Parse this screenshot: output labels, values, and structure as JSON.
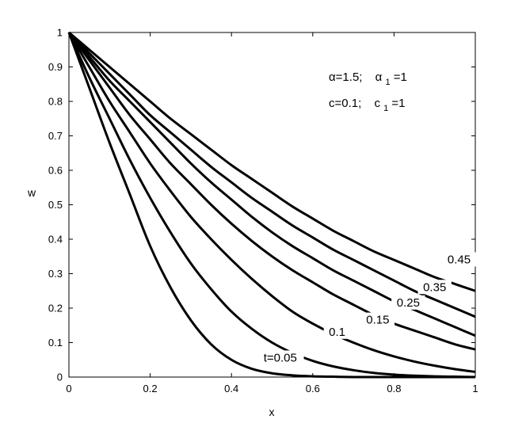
{
  "chart_data": {
    "type": "line",
    "title": "",
    "xlabel": "x",
    "ylabel": "w",
    "xlim": [
      0,
      1
    ],
    "ylim": [
      0,
      1
    ],
    "grid": false,
    "legend": "none",
    "line_color": "#000000",
    "xticks": [
      "0",
      "0.2",
      "0.4",
      "0.6",
      "0.8",
      "1"
    ],
    "yticks": [
      "0",
      "0.1",
      "0.2",
      "0.3",
      "0.4",
      "0.5",
      "0.6",
      "0.7",
      "0.8",
      "0.9",
      "1"
    ],
    "x": [
      0,
      0.05,
      0.1,
      0.15,
      0.2,
      0.25,
      0.3,
      0.35,
      0.4,
      0.45,
      0.5,
      0.55,
      0.6,
      0.65,
      0.7,
      0.75,
      0.8,
      0.85,
      0.9,
      0.95,
      1
    ],
    "series": [
      {
        "name": "t=0.05",
        "values": [
          1,
          0.84,
          0.68,
          0.53,
          0.38,
          0.26,
          0.165,
          0.095,
          0.05,
          0.024,
          0.011,
          0.005,
          0.002,
          0.001,
          0,
          0,
          0,
          0,
          0,
          0,
          0
        ]
      },
      {
        "name": "0.1",
        "values": [
          1,
          0.87,
          0.75,
          0.63,
          0.52,
          0.42,
          0.33,
          0.255,
          0.19,
          0.14,
          0.1,
          0.07,
          0.047,
          0.031,
          0.02,
          0.012,
          0.007,
          0.004,
          0.002,
          0.001,
          0
        ]
      },
      {
        "name": "0.15",
        "values": [
          1,
          0.9,
          0.8,
          0.71,
          0.62,
          0.54,
          0.465,
          0.4,
          0.34,
          0.285,
          0.235,
          0.19,
          0.155,
          0.125,
          0.1,
          0.078,
          0.06,
          0.045,
          0.033,
          0.023,
          0.015
        ]
      },
      {
        "name": "0.25",
        "values": [
          1,
          0.92,
          0.84,
          0.76,
          0.69,
          0.62,
          0.56,
          0.5,
          0.445,
          0.395,
          0.35,
          0.31,
          0.275,
          0.24,
          0.21,
          0.18,
          0.155,
          0.135,
          0.115,
          0.095,
          0.08
        ]
      },
      {
        "name": "0.35",
        "values": [
          1,
          0.93,
          0.86,
          0.8,
          0.74,
          0.68,
          0.62,
          0.565,
          0.515,
          0.465,
          0.42,
          0.38,
          0.345,
          0.31,
          0.28,
          0.25,
          0.22,
          0.195,
          0.17,
          0.145,
          0.12
        ]
      },
      {
        "name": "0.45",
        "values": [
          1,
          0.94,
          0.88,
          0.82,
          0.76,
          0.71,
          0.66,
          0.61,
          0.565,
          0.52,
          0.48,
          0.44,
          0.405,
          0.37,
          0.34,
          0.31,
          0.28,
          0.25,
          0.225,
          0.2,
          0.175
        ]
      },
      {
        "name": "",
        "values": [
          1,
          0.95,
          0.9,
          0.85,
          0.8,
          0.75,
          0.705,
          0.66,
          0.615,
          0.575,
          0.535,
          0.495,
          0.46,
          0.425,
          0.395,
          0.365,
          0.34,
          0.315,
          0.29,
          0.27,
          0.25
        ]
      }
    ],
    "curve_labels": [
      {
        "text": "t=0.05",
        "at": [
          0.52,
          0.045
        ]
      },
      {
        "text": "0.1",
        "at": [
          0.66,
          0.12
        ]
      },
      {
        "text": "0.15",
        "at": [
          0.76,
          0.155
        ]
      },
      {
        "text": "0.25",
        "at": [
          0.835,
          0.205
        ]
      },
      {
        "text": "0.35",
        "at": [
          0.9,
          0.25
        ]
      },
      {
        "text": "0.45",
        "at": [
          0.96,
          0.33
        ]
      }
    ],
    "parameters": {
      "line1": {
        "alpha": "α=1.5;",
        "alpha1_symbol": "α",
        "alpha1_sub": "1",
        "alpha1_value": "=1"
      },
      "line2": {
        "c": "c=0.1;",
        "c1_symbol": "c",
        "c1_sub": "1",
        "c1_value": "=1"
      }
    }
  }
}
